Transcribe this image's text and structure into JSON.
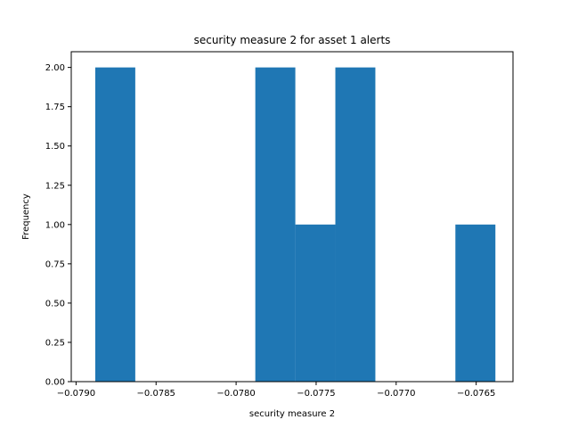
{
  "chart_data": {
    "type": "bar",
    "title": "security measure 2 for asset 1 alerts",
    "xlabel": "security measure 2",
    "ylabel": "Frequency",
    "xlim": [
      -0.07903,
      -0.07627
    ],
    "ylim": [
      0,
      2.1
    ],
    "grid": false,
    "bar_color": "#1f77b4",
    "bins": [
      {
        "x0": -0.07888,
        "x1": -0.07863,
        "value": 2
      },
      {
        "x0": -0.07863,
        "x1": -0.07838,
        "value": 0
      },
      {
        "x0": -0.07838,
        "x1": -0.07813,
        "value": 0
      },
      {
        "x0": -0.07813,
        "x1": -0.07788,
        "value": 0
      },
      {
        "x0": -0.07788,
        "x1": -0.07763,
        "value": 2
      },
      {
        "x0": -0.07763,
        "x1": -0.07738,
        "value": 1
      },
      {
        "x0": -0.07738,
        "x1": -0.07713,
        "value": 2
      },
      {
        "x0": -0.07713,
        "x1": -0.07688,
        "value": 0
      },
      {
        "x0": -0.07688,
        "x1": -0.07663,
        "value": 0
      },
      {
        "x0": -0.07663,
        "x1": -0.07638,
        "value": 1
      }
    ],
    "x_ticks": [
      {
        "value": -0.079,
        "label": "−0.0790"
      },
      {
        "value": -0.0785,
        "label": "−0.0785"
      },
      {
        "value": -0.078,
        "label": "−0.0780"
      },
      {
        "value": -0.0775,
        "label": "−0.0775"
      },
      {
        "value": -0.077,
        "label": "−0.0770"
      },
      {
        "value": -0.0765,
        "label": "−0.0765"
      }
    ],
    "y_ticks": [
      {
        "value": 0,
        "label": "0.00"
      },
      {
        "value": 0.25,
        "label": "0.25"
      },
      {
        "value": 0.5,
        "label": "0.50"
      },
      {
        "value": 0.75,
        "label": "0.75"
      },
      {
        "value": 1.0,
        "label": "1.00"
      },
      {
        "value": 1.25,
        "label": "1.25"
      },
      {
        "value": 1.5,
        "label": "1.50"
      },
      {
        "value": 1.75,
        "label": "1.75"
      },
      {
        "value": 2.0,
        "label": "2.00"
      }
    ]
  }
}
